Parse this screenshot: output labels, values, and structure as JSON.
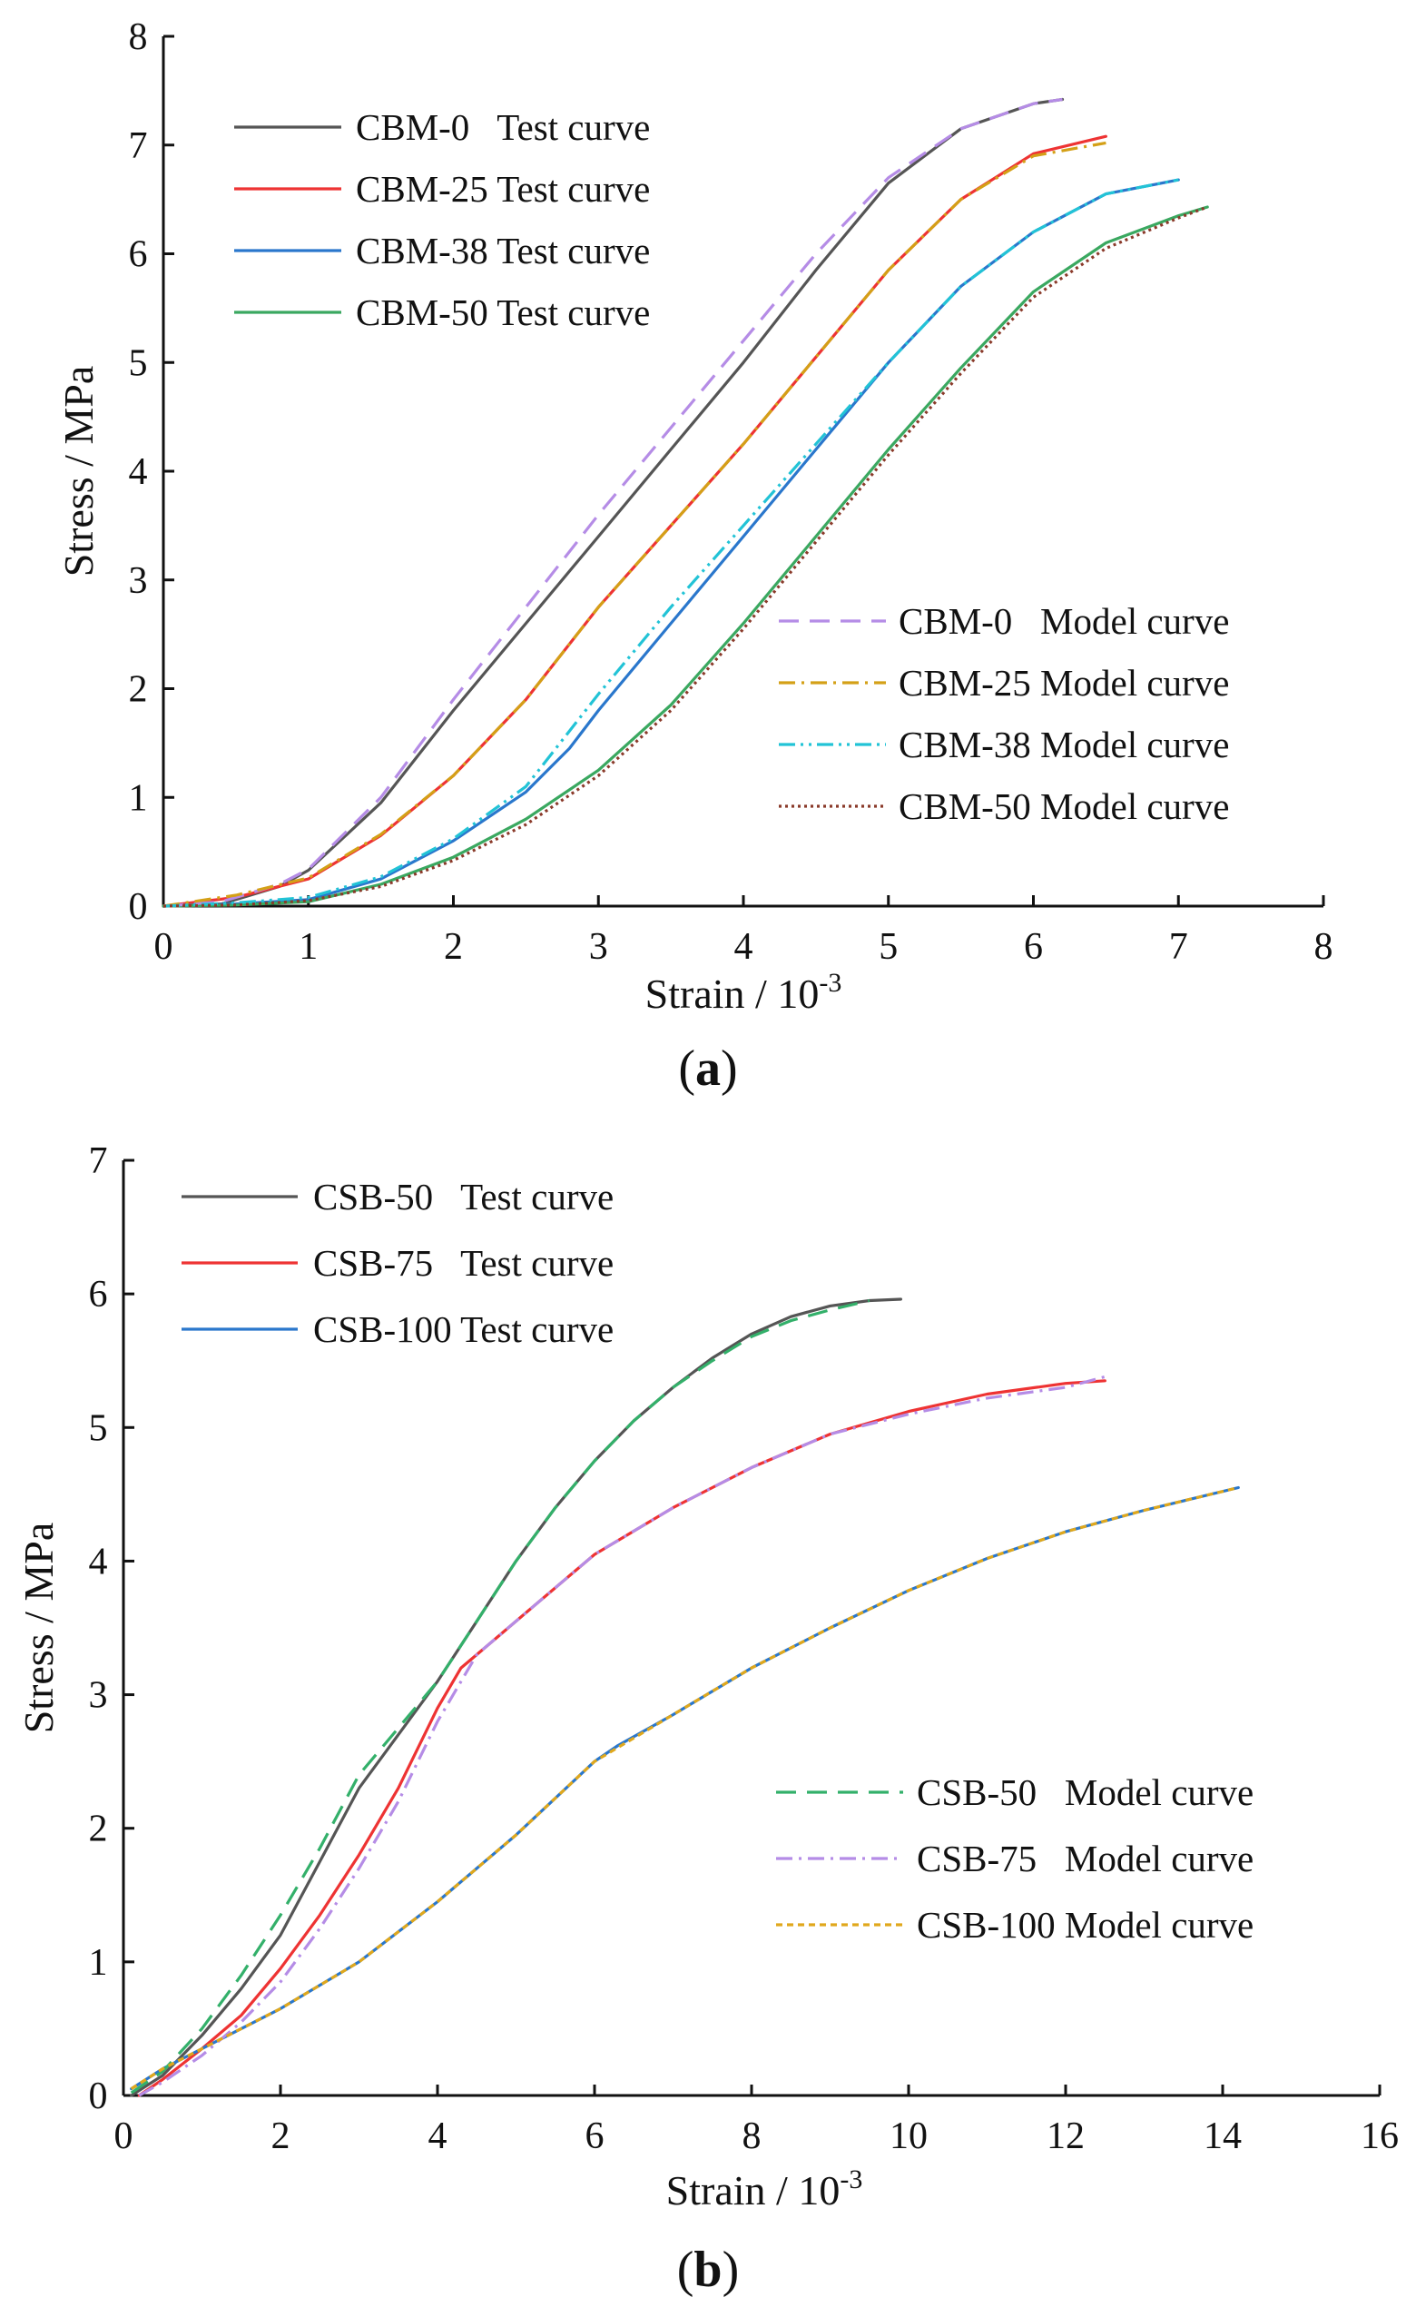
{
  "chart_data": [
    {
      "type": "line",
      "panel_label": "(a)",
      "panel_letter": "a",
      "xlabel": "Strain / 10",
      "xlabel_exp": "-3",
      "ylabel": "Stress / MPa",
      "xlim": [
        0,
        8
      ],
      "ylim": [
        0,
        8
      ],
      "xticks": [
        0,
        1,
        2,
        3,
        4,
        5,
        6,
        7,
        8
      ],
      "yticks": [
        0,
        1,
        2,
        3,
        4,
        5,
        6,
        7,
        8
      ],
      "legend_test_position": "top-left",
      "legend_model_position": "bottom-right",
      "series": [
        {
          "name": "CBM-0   Test curve",
          "group": "test",
          "color": "#555555",
          "dash": "",
          "x": [
            0,
            0.4,
            0.8,
            1.0,
            1.5,
            2.0,
            2.5,
            3.0,
            3.5,
            4.0,
            4.5,
            5.0,
            5.5,
            6.0,
            6.2
          ],
          "y": [
            0,
            0.02,
            0.18,
            0.33,
            0.95,
            1.8,
            2.6,
            3.4,
            4.2,
            5.0,
            5.85,
            6.65,
            7.15,
            7.38,
            7.42
          ]
        },
        {
          "name": "CBM-25 Test curve",
          "group": "test",
          "color": "#ee3333",
          "dash": "",
          "x": [
            0,
            0.5,
            1.0,
            1.5,
            2.0,
            2.5,
            3.0,
            3.5,
            4.0,
            4.5,
            5.0,
            5.5,
            6.0,
            6.5
          ],
          "y": [
            0,
            0.08,
            0.25,
            0.65,
            1.2,
            1.9,
            2.75,
            3.5,
            4.25,
            5.05,
            5.85,
            6.5,
            6.92,
            7.08
          ]
        },
        {
          "name": "CBM-38 Test curve",
          "group": "test",
          "color": "#2a77cc",
          "dash": "",
          "x": [
            0,
            0.5,
            1.0,
            1.5,
            2.0,
            2.5,
            2.8,
            3.0,
            3.5,
            4.0,
            4.5,
            5.0,
            5.5,
            6.0,
            6.5,
            7.0
          ],
          "y": [
            0,
            0.02,
            0.06,
            0.25,
            0.6,
            1.05,
            1.45,
            1.8,
            2.6,
            3.4,
            4.2,
            5.0,
            5.7,
            6.2,
            6.55,
            6.68
          ]
        },
        {
          "name": "CBM-50 Test curve",
          "group": "test",
          "color": "#3aa860",
          "dash": "",
          "x": [
            0,
            0.5,
            1.0,
            1.5,
            2.0,
            2.5,
            3.0,
            3.5,
            4.0,
            4.5,
            5.0,
            5.5,
            6.0,
            6.5,
            7.0,
            7.2
          ],
          "y": [
            0,
            0.01,
            0.04,
            0.2,
            0.45,
            0.8,
            1.25,
            1.85,
            2.6,
            3.4,
            4.2,
            4.95,
            5.65,
            6.1,
            6.35,
            6.43
          ]
        },
        {
          "name": "CBM-0   Model curve",
          "group": "model",
          "color": "#b58ce6",
          "dash": "22 12",
          "x": [
            0,
            0.4,
            0.8,
            1.0,
            1.5,
            2.0,
            2.5,
            3.0,
            3.5,
            4.0,
            4.5,
            5.0,
            5.5,
            6.0,
            6.2
          ],
          "y": [
            0,
            0.04,
            0.2,
            0.34,
            1.0,
            1.9,
            2.75,
            3.6,
            4.4,
            5.2,
            6.0,
            6.7,
            7.15,
            7.38,
            7.42
          ]
        },
        {
          "name": "CBM-25 Model curve",
          "group": "model",
          "color": "#d4a017",
          "dash": "18 7 3 7",
          "x": [
            0,
            0.5,
            1.0,
            1.5,
            2.0,
            2.5,
            3.0,
            3.5,
            4.0,
            4.5,
            5.0,
            5.5,
            6.0,
            6.5
          ],
          "y": [
            0,
            0.1,
            0.26,
            0.66,
            1.2,
            1.9,
            2.75,
            3.5,
            4.25,
            5.05,
            5.85,
            6.5,
            6.9,
            7.02
          ]
        },
        {
          "name": "CBM-38 Model curve",
          "group": "model",
          "color": "#22c3d6",
          "dash": "18 6 3 6 3 6",
          "x": [
            0,
            0.5,
            1.0,
            1.5,
            2.0,
            2.5,
            3.0,
            3.5,
            4.0,
            4.5,
            5.0,
            5.5,
            6.0,
            6.5,
            7.0
          ],
          "y": [
            0,
            0.03,
            0.08,
            0.27,
            0.62,
            1.1,
            1.95,
            2.75,
            3.5,
            4.25,
            5.0,
            5.7,
            6.2,
            6.55,
            6.68
          ]
        },
        {
          "name": "CBM-50 Model curve",
          "group": "model",
          "color": "#8a3a2a",
          "dash": "3 4",
          "x": [
            0,
            0.5,
            1.0,
            1.5,
            2.0,
            2.5,
            3.0,
            3.5,
            4.0,
            4.5,
            5.0,
            5.5,
            6.0,
            6.5,
            7.0,
            7.2
          ],
          "y": [
            0,
            0.01,
            0.05,
            0.18,
            0.42,
            0.75,
            1.2,
            1.8,
            2.55,
            3.35,
            4.15,
            4.9,
            5.6,
            6.05,
            6.33,
            6.43
          ]
        }
      ]
    },
    {
      "type": "line",
      "panel_label": "(b)",
      "panel_letter": "b",
      "xlabel": "Strain / 10",
      "xlabel_exp": "-3",
      "ylabel": "Stress / MPa",
      "xlim": [
        0,
        16
      ],
      "ylim": [
        0,
        7
      ],
      "xticks": [
        0,
        2,
        4,
        6,
        8,
        10,
        12,
        14,
        16
      ],
      "yticks": [
        0,
        1,
        2,
        3,
        4,
        5,
        6,
        7
      ],
      "legend_test_position": "top-left",
      "legend_model_position": "bottom-right",
      "series": [
        {
          "name": "CSB-50   Test curve",
          "group": "test",
          "color": "#555555",
          "dash": "",
          "x": [
            0.1,
            0.5,
            1.0,
            1.5,
            2.0,
            2.5,
            3.0,
            3.5,
            4.0,
            4.5,
            5.0,
            5.5,
            6.0,
            6.5,
            7.0,
            7.5,
            8.0,
            8.5,
            9.0,
            9.5,
            9.9
          ],
          "y": [
            0,
            0.15,
            0.45,
            0.8,
            1.2,
            1.75,
            2.3,
            2.7,
            3.1,
            3.55,
            4.0,
            4.4,
            4.75,
            5.05,
            5.3,
            5.52,
            5.7,
            5.83,
            5.91,
            5.95,
            5.96
          ]
        },
        {
          "name": "CSB-75   Test curve",
          "group": "test",
          "color": "#ee3333",
          "dash": "",
          "x": [
            0.2,
            0.5,
            1.0,
            1.5,
            2.0,
            2.5,
            3.0,
            3.5,
            4.0,
            4.3,
            4.6,
            5.0,
            6.0,
            7.0,
            8.0,
            9.0,
            10.0,
            11.0,
            12.0,
            12.5
          ],
          "y": [
            0,
            0.12,
            0.35,
            0.6,
            0.95,
            1.35,
            1.8,
            2.3,
            2.9,
            3.2,
            3.35,
            3.55,
            4.05,
            4.4,
            4.7,
            4.95,
            5.12,
            5.25,
            5.33,
            5.35
          ]
        },
        {
          "name": "CSB-100 Test curve",
          "group": "test",
          "color": "#2a77cc",
          "dash": "",
          "x": [
            0.1,
            0.5,
            1.0,
            2.0,
            3.0,
            4.0,
            5.0,
            6.0,
            6.3,
            7.0,
            8.0,
            9.0,
            10.0,
            11.0,
            12.0,
            13.0,
            14.2
          ],
          "y": [
            0.05,
            0.2,
            0.35,
            0.65,
            1.0,
            1.45,
            1.95,
            2.5,
            2.62,
            2.85,
            3.2,
            3.5,
            3.78,
            4.02,
            4.22,
            4.38,
            4.55
          ]
        },
        {
          "name": "CSB-50   Model curve",
          "group": "model",
          "color": "#33b06a",
          "dash": "22 12",
          "x": [
            0.1,
            0.5,
            1.0,
            1.5,
            2.0,
            2.5,
            3.0,
            3.5,
            4.0,
            4.5,
            5.0,
            5.5,
            6.0,
            6.5,
            7.0,
            7.5,
            8.0,
            8.5,
            9.0,
            9.5
          ],
          "y": [
            0.02,
            0.18,
            0.5,
            0.9,
            1.35,
            1.85,
            2.4,
            2.75,
            3.1,
            3.55,
            4.0,
            4.4,
            4.75,
            5.05,
            5.3,
            5.5,
            5.68,
            5.8,
            5.88,
            5.95
          ]
        },
        {
          "name": "CSB-75   Model curve",
          "group": "model",
          "color": "#b58ce6",
          "dash": "18 7 3 7",
          "x": [
            0.2,
            0.5,
            1.0,
            1.5,
            2.0,
            2.5,
            3.0,
            3.5,
            4.0,
            4.5,
            5.0,
            6.0,
            7.0,
            8.0,
            9.0,
            10.0,
            11.0,
            12.0,
            12.5
          ],
          "y": [
            0,
            0.1,
            0.3,
            0.55,
            0.85,
            1.25,
            1.7,
            2.2,
            2.8,
            3.3,
            3.55,
            4.05,
            4.4,
            4.7,
            4.95,
            5.1,
            5.22,
            5.3,
            5.38
          ]
        },
        {
          "name": "CSB-100 Model curve",
          "group": "model",
          "color": "#e0a81c",
          "dash": "7 5",
          "x": [
            0.1,
            0.5,
            1.0,
            2.0,
            3.0,
            4.0,
            5.0,
            6.0,
            7.0,
            8.0,
            9.0,
            10.0,
            11.0,
            12.0,
            13.0,
            14.2
          ],
          "y": [
            0.05,
            0.2,
            0.35,
            0.65,
            1.0,
            1.45,
            1.95,
            2.5,
            2.85,
            3.2,
            3.5,
            3.78,
            4.02,
            4.22,
            4.38,
            4.55
          ]
        }
      ]
    }
  ]
}
